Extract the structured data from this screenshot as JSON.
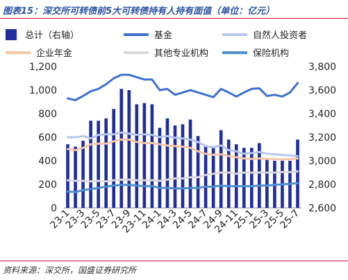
{
  "title": "图表15：深交所可转债前5大可转债持有人持有面值（单位：亿元）",
  "source": "资料来源：深交所，国盛证券研究所",
  "chart_data": {
    "type": "bar+line",
    "categories": [
      "23-1",
      "23-2",
      "23-3",
      "23-4",
      "23-5",
      "23-6",
      "23-7",
      "23-8",
      "23-9",
      "23-10",
      "23-11",
      "23-12",
      "24-1",
      "24-2",
      "24-3",
      "24-4",
      "24-5",
      "24-6",
      "24-7",
      "24-8",
      "24-9",
      "24-10",
      "24-11",
      "24-12",
      "25-1",
      "25-2",
      "25-3",
      "25-4",
      "25-5",
      "25-6",
      "25-7"
    ],
    "x_tick_labels": [
      "23-1",
      "23-3",
      "23-5",
      "23-7",
      "23-9",
      "23-11",
      "24-1",
      "24-3",
      "24-5",
      "24-7",
      "24-9",
      "24-11",
      "25-1",
      "25-3",
      "25-5",
      "25-7"
    ],
    "y_left": {
      "min": 0,
      "max": 1200,
      "step": 200,
      "ticks": [
        "0",
        "200",
        "400",
        "600",
        "800",
        "1,000",
        "1,200"
      ]
    },
    "y_right": {
      "min": 2600,
      "max": 3800,
      "step": 200,
      "ticks": [
        "2,600",
        "2,800",
        "3,000",
        "3,200",
        "3,400",
        "3,600",
        "3,800"
      ]
    },
    "bar_series": {
      "name": "总计（右轴）",
      "color": "#1f2d9e",
      "axis": "right",
      "values": [
        3140,
        3120,
        3170,
        3340,
        3340,
        3360,
        3440,
        3610,
        3600,
        3480,
        3490,
        3480,
        3280,
        3360,
        3300,
        3310,
        3350,
        3210,
        3130,
        3110,
        3260,
        3180,
        3140,
        3110,
        3110,
        3150,
        3020,
        3000,
        3000,
        3000,
        3180
      ]
    },
    "line_series": [
      {
        "name": "基金",
        "color": "#3b6fd0",
        "width": 3,
        "values": [
          930,
          915,
          950,
          990,
          1010,
          1050,
          1100,
          1130,
          1130,
          1110,
          1090,
          1090,
          1000,
          1010,
          960,
          980,
          1000,
          980,
          960,
          940,
          1010,
          980,
          945,
          980,
          1010,
          1015,
          950,
          960,
          945,
          980,
          1060
        ]
      },
      {
        "name": "自然人投资者",
        "color": "#b7c6ec",
        "width": 3,
        "values": [
          600,
          600,
          610,
          590,
          620,
          625,
          625,
          640,
          630,
          620,
          625,
          620,
          600,
          610,
          595,
          590,
          580,
          560,
          525,
          515,
          530,
          490,
          480,
          460,
          465,
          475,
          460,
          455,
          450,
          445,
          440
        ]
      },
      {
        "name": "企业年金",
        "color": "#f5c6a6",
        "width": 3,
        "values": [
          500,
          490,
          510,
          540,
          545,
          545,
          565,
          580,
          580,
          560,
          550,
          550,
          540,
          530,
          525,
          520,
          510,
          480,
          460,
          450,
          455,
          440,
          430,
          420,
          415,
          420,
          415,
          415,
          410,
          415,
          420
        ]
      },
      {
        "name": "其他专业机构",
        "color": "#d9d9d9",
        "width": 3,
        "values": [
          235,
          230,
          230,
          225,
          230,
          225,
          235,
          240,
          240,
          235,
          235,
          235,
          230,
          240,
          250,
          250,
          260,
          260,
          280,
          290,
          300,
          300,
          290,
          300,
          300,
          300,
          300,
          300,
          305,
          305,
          310
        ]
      },
      {
        "name": "保险机构",
        "color": "#4f8fd1",
        "width": 3,
        "values": [
          140,
          135,
          150,
          160,
          170,
          180,
          190,
          195,
          195,
          190,
          185,
          185,
          170,
          170,
          165,
          165,
          170,
          170,
          180,
          180,
          190,
          185,
          185,
          185,
          185,
          190,
          190,
          195,
          200,
          205,
          210
        ]
      }
    ],
    "legend": [
      "总计（右轴）",
      "基金",
      "自然人投资者",
      "企业年金",
      "其他专业机构",
      "保险机构"
    ],
    "legend_position": "top"
  }
}
